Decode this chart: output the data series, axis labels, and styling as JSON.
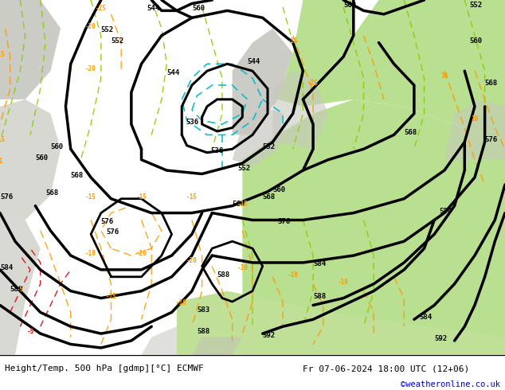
{
  "title_left": "Height/Temp. 500 hPa [gdmp][°C] ECMWF",
  "title_right": "Fr 07-06-2024 18:00 UTC (12+06)",
  "credit": "©weatheronline.co.uk",
  "footer_text_color": "#000000",
  "credit_color": "#0000cc",
  "figwidth": 6.34,
  "figheight": 4.9,
  "dpi": 100,
  "map_bg": "#c8deb8",
  "land_gray": "#b8b8b8",
  "land_green_light": "#c8e0b0",
  "land_green_dark": "#a8c898",
  "sea_color": "#c0d8c0"
}
